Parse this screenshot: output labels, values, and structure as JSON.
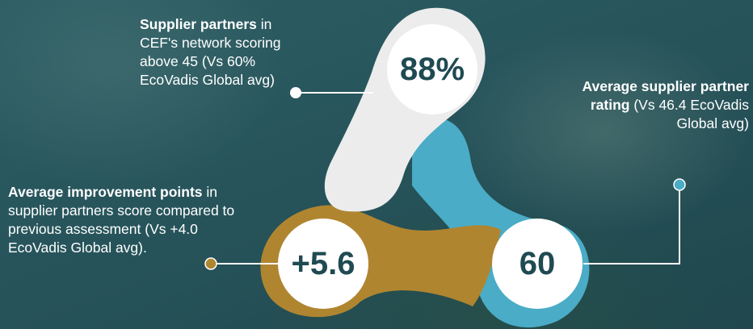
{
  "stats": [
    {
      "value": "88%",
      "title": "Supplier partners",
      "description": " in CEF's network scoring above 45 (Vs 60% EcoVadis Global avg)",
      "color": "#e9e9e9"
    },
    {
      "value": "60",
      "title": "Average supplier partner rating",
      "description": " (Vs 46.4 EcoVadis Global avg)",
      "color": "#4aacc6"
    },
    {
      "value": "+5.6",
      "title": "Average improvement points",
      "description": " in supplier partners score compared to previous assessment (Vs +4.0 EcoVadis Global avg).",
      "color": "#b08530"
    }
  ]
}
